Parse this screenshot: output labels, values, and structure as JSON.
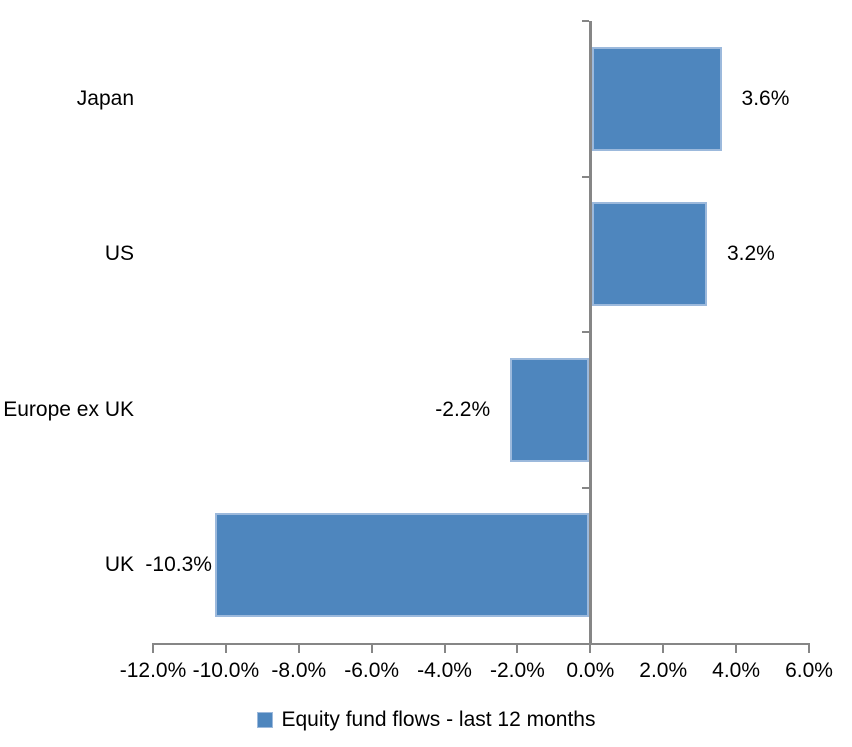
{
  "chart_data": {
    "type": "bar",
    "orientation": "horizontal",
    "title": "",
    "categories": [
      "Japan",
      "US",
      "Europe ex UK",
      "UK"
    ],
    "values": [
      3.6,
      3.2,
      -2.2,
      -10.3
    ],
    "data_labels": [
      "3.6%",
      "3.2%",
      "-2.2%",
      "-10.3%"
    ],
    "xlim": [
      -12,
      6
    ],
    "tick_step": 2,
    "tick_labels": [
      "-12.0%",
      "-10.0%",
      "-8.0%",
      "-6.0%",
      "-4.0%",
      "-2.0%",
      "0.0%",
      "2.0%",
      "4.0%",
      "6.0%"
    ],
    "grid": false,
    "legend_position": "bottom",
    "legend_entries": [
      "Equity fund flows - last 12 months"
    ],
    "colors": {
      "bar_fill": "#4E86BE",
      "bar_border": "#9CB9DC",
      "axis": "#868686",
      "text": "#000000",
      "background": "#FFFFFF"
    }
  },
  "legend": {
    "label": "Equity fund flows - last 12 months"
  }
}
